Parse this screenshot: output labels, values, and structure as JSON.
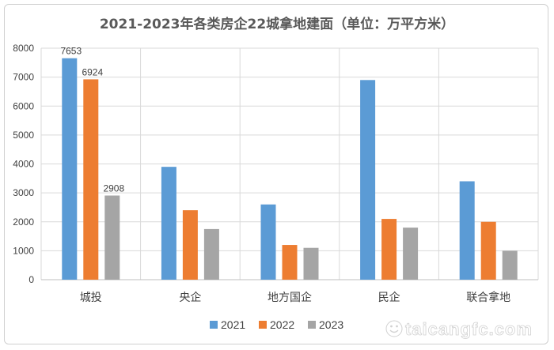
{
  "chart_data": {
    "type": "bar",
    "title": "2021-2023年各类房企22城拿地建面（单位：万平方米）",
    "categories": [
      "城投",
      "央企",
      "地方国企",
      "民企",
      "联合拿地"
    ],
    "series": [
      {
        "name": "2021",
        "color": "#5b9bd5",
        "values": [
          7653,
          3900,
          2600,
          6900,
          3400
        ],
        "labels": [
          "7653",
          null,
          null,
          null,
          null
        ]
      },
      {
        "name": "2022",
        "color": "#ed7d31",
        "values": [
          6924,
          2400,
          1200,
          2100,
          2000
        ],
        "labels": [
          "6924",
          null,
          null,
          null,
          null
        ]
      },
      {
        "name": "2023",
        "color": "#a5a5a5",
        "values": [
          2908,
          1750,
          1100,
          1800,
          1000
        ],
        "labels": [
          "2908",
          null,
          null,
          null,
          null
        ]
      }
    ],
    "ylim": [
      0,
      8000
    ],
    "yticks": [
      0,
      1000,
      2000,
      3000,
      4000,
      5000,
      6000,
      7000,
      8000
    ],
    "grid": true,
    "legend_position": "bottom"
  },
  "watermark": {
    "text": "taicangfc.com",
    "icon": "smiley-icon"
  }
}
